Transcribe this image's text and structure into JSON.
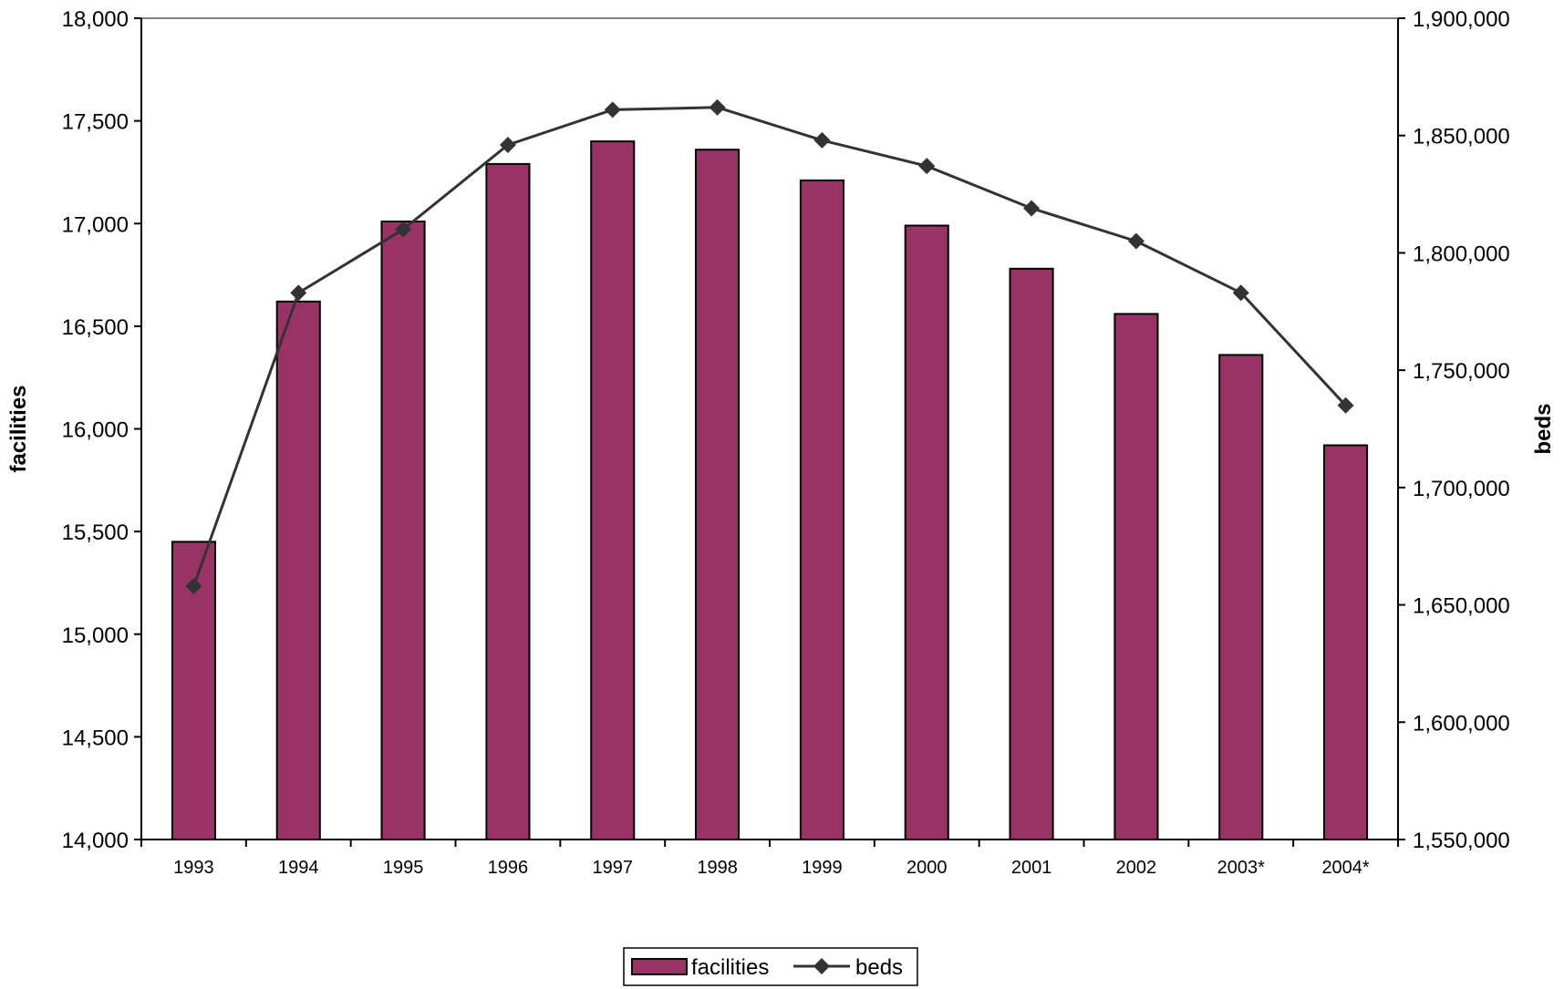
{
  "chart_data": {
    "type": "bar",
    "title": "",
    "categories": [
      "1993",
      "1994",
      "1995",
      "1996",
      "1997",
      "1998",
      "1999",
      "2000",
      "2001",
      "2002",
      "2003*",
      "2004*"
    ],
    "series": [
      {
        "name": "facilities",
        "type": "bar",
        "axis": "left",
        "color": "#993366",
        "values": [
          15450,
          16620,
          17010,
          17290,
          17400,
          17360,
          17210,
          16990,
          16780,
          16560,
          16360,
          15920
        ]
      },
      {
        "name": "beds",
        "type": "line",
        "axis": "right",
        "color": "#333333",
        "marker": "diamond",
        "values": [
          1658000,
          1783000,
          1810000,
          1846000,
          1861000,
          1862000,
          1848000,
          1837000,
          1819000,
          1805000,
          1783000,
          1735000
        ]
      }
    ],
    "ylabel": "facilities",
    "ylim": [
      14000,
      18000
    ],
    "yticks": [
      "14,000",
      "14,500",
      "15,000",
      "15,500",
      "16,000",
      "16,500",
      "17,000",
      "17,500",
      "18,000"
    ],
    "y2label": "beds",
    "y2lim": [
      1550000,
      1900000
    ],
    "y2ticks": [
      "1,550,000",
      "1,600,000",
      "1,650,000",
      "1,700,000",
      "1,750,000",
      "1,800,000",
      "1,850,000",
      "1,900,000"
    ],
    "grid": false,
    "legend_position": "bottom-center"
  }
}
